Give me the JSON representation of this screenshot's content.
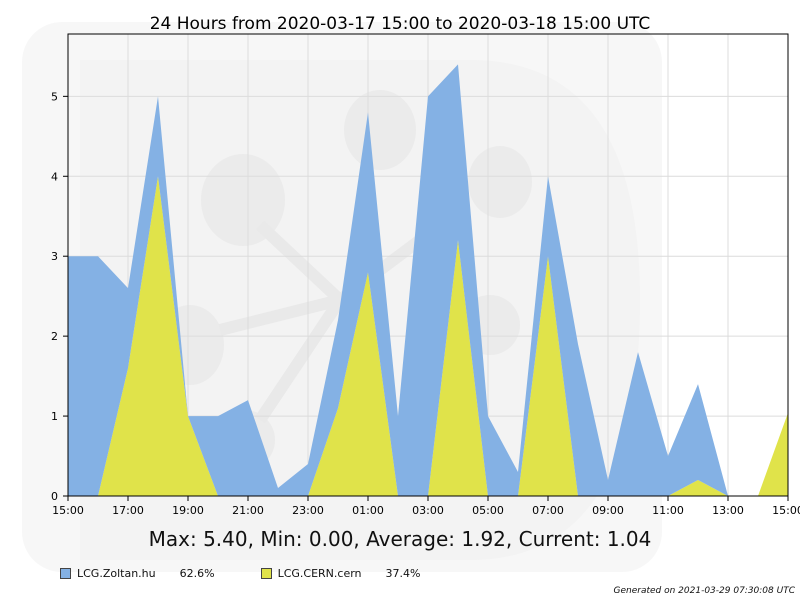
{
  "chart_data": {
    "type": "area",
    "title": "24 Hours from 2020-03-17 15:00 to 2020-03-18 15:00 UTC",
    "x_ticks": [
      "15:00",
      "17:00",
      "19:00",
      "21:00",
      "23:00",
      "01:00",
      "03:00",
      "05:00",
      "07:00",
      "09:00",
      "11:00",
      "13:00",
      "15:00"
    ],
    "y_ticks": [
      0,
      1,
      2,
      3,
      4,
      5
    ],
    "xlim_hours": [
      0,
      24
    ],
    "ylim": [
      0,
      5.78
    ],
    "grid": true,
    "stacked": true,
    "x": [
      0,
      1,
      2,
      3,
      4,
      5,
      6,
      7,
      8,
      9,
      10,
      11,
      12,
      13,
      14,
      15,
      16,
      17,
      18,
      19,
      20,
      21,
      22,
      23,
      24
    ],
    "series": [
      {
        "name": "LCG.CERN.cern",
        "color": "#e0e34a",
        "values": [
          0,
          0,
          1.6,
          4.0,
          1.0,
          0,
          0,
          0,
          0,
          1.1,
          2.8,
          0,
          0,
          3.2,
          0,
          0,
          3.0,
          0,
          0,
          0,
          0,
          0.2,
          0,
          0,
          1.04
        ]
      },
      {
        "name": "LCG.Zoltan.hu",
        "color": "#84b1e4",
        "values": [
          3.0,
          3.0,
          1.0,
          1.0,
          0,
          1.0,
          1.2,
          0.1,
          0.4,
          1.1,
          2.0,
          1.0,
          5.0,
          2.2,
          1.0,
          0.3,
          1.0,
          1.9,
          0.2,
          1.8,
          0.5,
          1.2,
          0,
          0,
          0
        ]
      }
    ]
  },
  "stats_text": "Max: 5.40, Min: 0.00, Average: 1.92, Current: 1.04",
  "legend": [
    {
      "name": "LCG.Zoltan.hu",
      "percent": "62.6%",
      "color": "#84b1e4"
    },
    {
      "name": "LCG.CERN.cern",
      "percent": "37.4%",
      "color": "#e0e34a"
    }
  ],
  "footer": "Generated on 2021-03-29 07:30:08 UTC"
}
